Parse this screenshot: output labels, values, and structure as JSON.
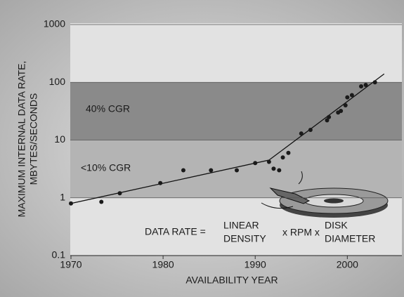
{
  "chart_data": {
    "type": "scatter",
    "x_label": "AVAILABILITY YEAR",
    "y_label": [
      "MAXIMUM INTERNAL DATA RATE,",
      "MBYTES/SECONDS"
    ],
    "x": [
      1970,
      1973.3,
      1975.3,
      1979.7,
      1982.2,
      1985.2,
      1988,
      1990,
      1991.5,
      1992,
      1992.6,
      1993,
      1993.6,
      1995,
      1996,
      1997.8,
      1998,
      1999,
      1999.3,
      1999.8,
      2000,
      2000.5,
      2001.5,
      2002,
      2003
    ],
    "values": [
      0.8,
      0.85,
      1.2,
      1.8,
      3.0,
      3.0,
      3.0,
      4.0,
      4.2,
      3.2,
      3.0,
      5,
      6,
      13,
      15,
      22,
      25,
      30,
      32,
      40,
      55,
      60,
      85,
      90,
      100
    ],
    "color": "#1a1a1a",
    "trend_lines": [
      {
        "x": [
          1970,
          1991.5
        ],
        "values": [
          0.8,
          4.5
        ]
      },
      {
        "x": [
          1991.5,
          2004
        ],
        "values": [
          4.5,
          140
        ]
      }
    ],
    "bands": [
      {
        "from": 10,
        "to": 100,
        "color": "#8a8a8a"
      },
      {
        "from": 1,
        "to": 10,
        "color": "#b4b4b4"
      }
    ],
    "annotations": [
      "40% CGR",
      "<10% CGR"
    ],
    "formula": [
      "DATA RATE =",
      "LINEAR",
      "DENSITY",
      "x RPM x",
      "DISK",
      "DIAMETER"
    ],
    "xlim": [
      1970,
      2006
    ],
    "xticks": [
      1970,
      1980,
      1990,
      2000
    ],
    "ylim": [
      0.1,
      1000
    ],
    "yticks": [
      1000,
      100,
      10,
      1,
      0.1
    ],
    "log_y": true,
    "grid": true
  }
}
